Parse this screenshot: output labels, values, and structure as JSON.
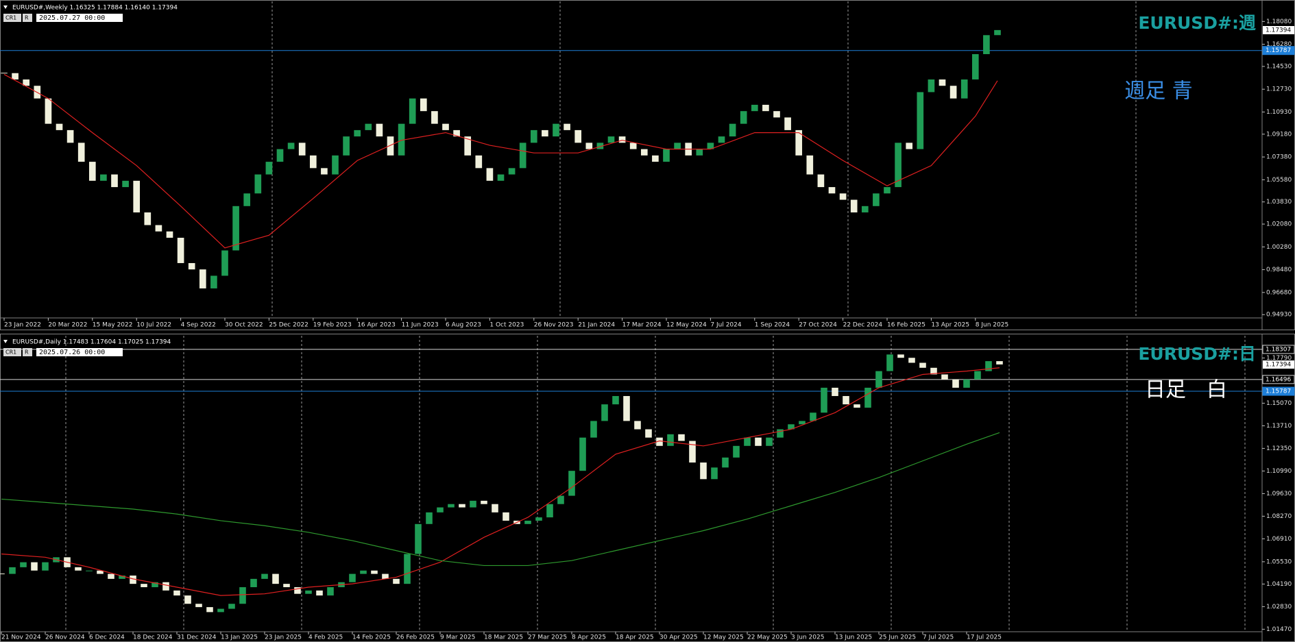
{
  "chart_data": [
    {
      "type": "candlestick",
      "title": "EURUSD#,Weekly  1.16325 1.17884 1.16140 1.17394",
      "timestamp": "2025.07.27 00:00",
      "buttons": [
        "CR1",
        "R"
      ],
      "annotations": [
        "EURUSD#:週",
        "週足 青"
      ],
      "annotation_colors": [
        "#1aa0a0",
        "#3a8ee6"
      ],
      "up_color": "#1f9d55",
      "down_color": "#f0f0dc",
      "close": [
        1.14,
        1.135,
        1.13,
        1.12,
        1.1,
        1.095,
        1.085,
        1.07,
        1.055,
        1.06,
        1.05,
        1.055,
        1.03,
        1.02,
        1.015,
        1.01,
        0.99,
        0.985,
        0.97,
        0.98,
        1.0,
        1.035,
        1.045,
        1.06,
        1.07,
        1.08,
        1.085,
        1.075,
        1.065,
        1.06,
        1.075,
        1.09,
        1.095,
        1.1,
        1.09,
        1.075,
        1.1,
        1.12,
        1.11,
        1.1,
        1.095,
        1.09,
        1.075,
        1.065,
        1.055,
        1.06,
        1.065,
        1.085,
        1.095,
        1.09,
        1.1,
        1.095,
        1.085,
        1.08,
        1.085,
        1.09,
        1.085,
        1.08,
        1.075,
        1.07,
        1.08,
        1.085,
        1.075,
        1.08,
        1.085,
        1.09,
        1.1,
        1.11,
        1.115,
        1.11,
        1.105,
        1.095,
        1.075,
        1.06,
        1.05,
        1.045,
        1.04,
        1.03,
        1.035,
        1.045,
        1.05,
        1.085,
        1.08,
        1.125,
        1.135,
        1.13,
        1.12,
        1.135,
        1.155,
        1.17,
        1.174
      ],
      "series": [
        {
          "color": "#e02020",
          "x": [
            0,
            4,
            8,
            12,
            16,
            20,
            24,
            28,
            32,
            36,
            40,
            44,
            48,
            52,
            56,
            60,
            64,
            68,
            72,
            76,
            80,
            84,
            88,
            90
          ],
          "values": [
            1.139,
            1.12,
            1.093,
            1.067,
            1.035,
            1.002,
            1.012,
            1.041,
            1.071,
            1.087,
            1.093,
            1.083,
            1.077,
            1.077,
            1.087,
            1.08,
            1.08,
            1.093,
            1.093,
            1.071,
            1.051,
            1.067,
            1.106,
            1.134
          ]
        }
      ],
      "xticks": [
        {
          "value": 0,
          "label": "23 Jan 2022"
        },
        {
          "value": 4,
          "label": "20 Mar 2022"
        },
        {
          "value": 8,
          "label": "15 May 2022"
        },
        {
          "value": 12,
          "label": "10 Jul 2022"
        },
        {
          "value": 16,
          "label": "4 Sep 2022"
        },
        {
          "value": 20,
          "label": "30 Oct 2022"
        },
        {
          "value": 24,
          "label": "25 Dec 2022"
        },
        {
          "value": 28,
          "label": "19 Feb 2023"
        },
        {
          "value": 32,
          "label": "16 Apr 2023"
        },
        {
          "value": 36,
          "label": "11 Jun 2023"
        },
        {
          "value": 40,
          "label": "6 Aug 2023"
        },
        {
          "value": 44,
          "label": "1 Oct 2023"
        },
        {
          "value": 48,
          "label": "26 Nov 2023"
        },
        {
          "value": 52,
          "label": "21 Jan 2024"
        },
        {
          "value": 56,
          "label": "17 Mar 2024"
        },
        {
          "value": 60,
          "label": "12 May 2024"
        },
        {
          "value": 64,
          "label": "7 Jul 2024"
        },
        {
          "value": 68,
          "label": "1 Sep 2024"
        },
        {
          "value": 72,
          "label": "27 Oct 2024"
        },
        {
          "value": 76,
          "label": "22 Dec 2024"
        },
        {
          "value": 80,
          "label": "16 Feb 2025"
        },
        {
          "value": 84,
          "label": "13 Apr 2025"
        },
        {
          "value": 88,
          "label": "8 Jun 2025"
        }
      ],
      "ylim": [
        0.9467,
        1.1945
      ],
      "yticks": [
        {
          "value": 1.1808,
          "label": "1.18080"
        },
        {
          "value": 1.1628,
          "label": "1.16280"
        },
        {
          "value": 1.1453,
          "label": "1.14530"
        },
        {
          "value": 1.1273,
          "label": "1.12730"
        },
        {
          "value": 1.1093,
          "label": "1.10930"
        },
        {
          "value": 1.0918,
          "label": "1.09180"
        },
        {
          "value": 1.0738,
          "label": "1.07380"
        },
        {
          "value": 1.0558,
          "label": "1.05580"
        },
        {
          "value": 1.0383,
          "label": "1.03830"
        },
        {
          "value": 1.0208,
          "label": "1.02080"
        },
        {
          "value": 1.0028,
          "label": "1.00280"
        },
        {
          "value": 0.9848,
          "label": "0.98480"
        },
        {
          "value": 0.9668,
          "label": "0.96680"
        },
        {
          "value": 0.9493,
          "label": "0.94930"
        }
      ],
      "hlines": [
        {
          "value": 1.15787,
          "label": "1.15787",
          "color": "#1e7fd8"
        }
      ],
      "price_labels": [
        {
          "value": 1.17394,
          "label": "1.17394"
        }
      ]
    },
    {
      "type": "candlestick",
      "title": "EURUSD#,Daily  1.17483 1.17604 1.17025 1.17394",
      "timestamp": "2025.07.26 00:00",
      "buttons": [
        "CR1",
        "R"
      ],
      "annotations": [
        "EURUSD#:日",
        "日足　白"
      ],
      "annotation_colors": [
        "#1aa0a0",
        "#ffffff"
      ],
      "up_color": "#1f9d55",
      "down_color": "#f0f0dc",
      "close": [
        1.048,
        1.052,
        1.055,
        1.05,
        1.055,
        1.058,
        1.052,
        1.05,
        1.05,
        1.048,
        1.045,
        1.047,
        1.042,
        1.04,
        1.043,
        1.038,
        1.035,
        1.03,
        1.028,
        1.025,
        1.027,
        1.03,
        1.04,
        1.045,
        1.048,
        1.042,
        1.04,
        1.036,
        1.038,
        1.035,
        1.04,
        1.043,
        1.048,
        1.05,
        1.048,
        1.045,
        1.042,
        1.06,
        1.078,
        1.085,
        1.088,
        1.09,
        1.088,
        1.092,
        1.09,
        1.085,
        1.08,
        1.078,
        1.08,
        1.082,
        1.09,
        1.095,
        1.11,
        1.13,
        1.14,
        1.15,
        1.155,
        1.14,
        1.135,
        1.13,
        1.125,
        1.132,
        1.128,
        1.115,
        1.105,
        1.112,
        1.118,
        1.125,
        1.13,
        1.125,
        1.13,
        1.135,
        1.138,
        1.14,
        1.145,
        1.16,
        1.155,
        1.15,
        1.148,
        1.16,
        1.17,
        1.18,
        1.178,
        1.175,
        1.172,
        1.168,
        1.165,
        1.16,
        1.165,
        1.17,
        1.176,
        1.174
      ],
      "series": [
        {
          "color": "#e02020",
          "x": [
            0,
            4,
            8,
            12,
            16,
            20,
            24,
            28,
            32,
            36,
            40,
            44,
            48,
            52,
            56,
            60,
            64,
            68,
            72,
            76,
            80,
            84,
            88,
            91
          ],
          "values": [
            1.06,
            1.058,
            1.052,
            1.045,
            1.04,
            1.035,
            1.036,
            1.04,
            1.042,
            1.046,
            1.055,
            1.07,
            1.082,
            1.1,
            1.12,
            1.128,
            1.125,
            1.13,
            1.135,
            1.145,
            1.16,
            1.168,
            1.17,
            1.172
          ]
        },
        {
          "color": "#2e9a2e",
          "x": [
            0,
            4,
            8,
            12,
            16,
            20,
            24,
            28,
            32,
            36,
            40,
            44,
            48,
            52,
            56,
            60,
            64,
            68,
            72,
            76,
            80,
            84,
            88,
            91
          ],
          "values": [
            1.093,
            1.091,
            1.089,
            1.087,
            1.084,
            1.08,
            1.077,
            1.073,
            1.068,
            1.062,
            1.056,
            1.053,
            1.053,
            1.056,
            1.062,
            1.068,
            1.074,
            1.081,
            1.089,
            1.097,
            1.106,
            1.116,
            1.126,
            1.133
          ]
        }
      ],
      "xticks": [
        {
          "value": 0,
          "label": "21 Nov 2024"
        },
        {
          "value": 4,
          "label": "26 Nov 2024"
        },
        {
          "value": 8,
          "label": "6 Dec 2024"
        },
        {
          "value": 12,
          "label": "18 Dec 2024"
        },
        {
          "value": 16,
          "label": "31 Dec 2024"
        },
        {
          "value": 20,
          "label": "13 Jan 2025"
        },
        {
          "value": 24,
          "label": "23 Jan 2025"
        },
        {
          "value": 28,
          "label": "4 Feb 2025"
        },
        {
          "value": 32,
          "label": "14 Feb 2025"
        },
        {
          "value": 36,
          "label": "26 Feb 2025"
        },
        {
          "value": 40,
          "label": "9 Mar 2025"
        },
        {
          "value": 44,
          "label": "18 Mar 2025"
        },
        {
          "value": 48,
          "label": "27 Mar 2025"
        },
        {
          "value": 52,
          "label": "8 Apr 2025"
        },
        {
          "value": 56,
          "label": "18 Apr 2025"
        },
        {
          "value": 60,
          "label": "30 Apr 2025"
        },
        {
          "value": 64,
          "label": "12 May 2025"
        },
        {
          "value": 68,
          "label": "22 May 2025"
        },
        {
          "value": 72,
          "label": "3 Jun 2025"
        },
        {
          "value": 76,
          "label": "13 Jun 2025"
        },
        {
          "value": 80,
          "label": "25 Jun 2025"
        },
        {
          "value": 84,
          "label": "7 Jul 2025"
        },
        {
          "value": 88,
          "label": "17 Jul 2025"
        }
      ],
      "ylim": [
        1.0132,
        1.1851
      ],
      "yticks": [
        {
          "value": 1.1779,
          "label": "1.17790"
        },
        {
          "value": 1.1507,
          "label": "1.15070"
        },
        {
          "value": 1.1371,
          "label": "1.13710"
        },
        {
          "value": 1.1235,
          "label": "1.12350"
        },
        {
          "value": 1.1099,
          "label": "1.10990"
        },
        {
          "value": 1.0963,
          "label": "1.09630"
        },
        {
          "value": 1.0827,
          "label": "1.08270"
        },
        {
          "value": 1.0691,
          "label": "1.06910"
        },
        {
          "value": 1.0553,
          "label": "1.05530"
        },
        {
          "value": 1.0419,
          "label": "1.04190"
        },
        {
          "value": 1.0283,
          "label": "1.02830"
        },
        {
          "value": 1.0147,
          "label": "1.01470"
        }
      ],
      "hlines": [
        {
          "value": 1.18307,
          "label": "1.18307",
          "color": "#d8d8d8"
        },
        {
          "value": 1.16496,
          "label": "1.16496",
          "color": "#d8d8d8"
        },
        {
          "value": 1.15787,
          "label": "1.15787",
          "color": "#1e7fd8"
        }
      ],
      "price_labels": [
        {
          "value": 1.17394,
          "label": "1.17394"
        }
      ]
    }
  ]
}
